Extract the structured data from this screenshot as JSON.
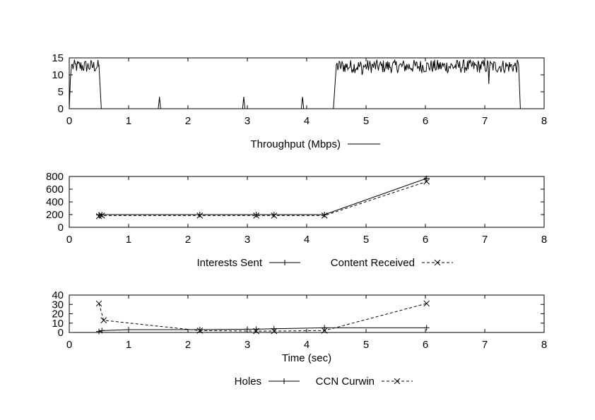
{
  "chart_data": [
    {
      "type": "line",
      "xlim": [
        0,
        8
      ],
      "ylim": [
        0,
        15
      ],
      "x_ticks": [
        "0",
        "1",
        "2",
        "3",
        "4",
        "5",
        "6",
        "7",
        "8"
      ],
      "y_ticks": [
        "0",
        "5",
        "10",
        "15"
      ],
      "xlabel": "",
      "ylabel": "",
      "legend_position": "bottom-center",
      "series": [
        {
          "name": "Throughput (Mbps)",
          "style": "solid",
          "points": [
            [
              0.0,
              0
            ],
            [
              0.02,
              9
            ],
            [
              0.04,
              13
            ],
            [
              0.5,
              13
            ],
            [
              0.54,
              0
            ],
            [
              1.5,
              0
            ],
            [
              1.52,
              3.5
            ],
            [
              1.54,
              0
            ],
            [
              2.92,
              0
            ],
            [
              2.94,
              3.5
            ],
            [
              2.96,
              0
            ],
            [
              3.91,
              0
            ],
            [
              3.93,
              3.5
            ],
            [
              3.95,
              0
            ],
            [
              4.45,
              0
            ],
            [
              4.5,
              13
            ],
            [
              7.57,
              13
            ],
            [
              7.6,
              0
            ],
            [
              8.0,
              0
            ]
          ],
          "noise_segments": [
            {
              "x": [
                0.04,
                0.5
              ],
              "y": [
                10.5,
                14.5
              ]
            },
            {
              "x": [
                4.5,
                7.57
              ],
              "y": [
                10.5,
                14.5
              ]
            }
          ],
          "dips": [
            [
              7.07,
              7.3
            ],
            [
              4.93,
              10.0
            ]
          ]
        }
      ]
    },
    {
      "type": "line",
      "xlim": [
        0,
        8
      ],
      "ylim": [
        0,
        800
      ],
      "x_ticks": [
        "0",
        "1",
        "2",
        "3",
        "4",
        "5",
        "6",
        "7",
        "8"
      ],
      "y_ticks": [
        "0",
        "200",
        "400",
        "600",
        "800"
      ],
      "xlabel": "",
      "ylabel": "",
      "legend_position": "bottom-center",
      "series": [
        {
          "name": "Interests Sent",
          "style": "solid",
          "marker": "plus",
          "points": [
            [
              0.5,
              195
            ],
            [
              0.55,
              200
            ],
            [
              2.2,
              200
            ],
            [
              3.15,
              200
            ],
            [
              3.45,
              200
            ],
            [
              4.3,
              200
            ],
            [
              6.02,
              770
            ]
          ]
        },
        {
          "name": "Content Received",
          "style": "dashed",
          "marker": "x",
          "points": [
            [
              0.5,
              175
            ],
            [
              0.55,
              185
            ],
            [
              2.2,
              185
            ],
            [
              3.15,
              185
            ],
            [
              3.45,
              185
            ],
            [
              4.3,
              185
            ],
            [
              6.02,
              720
            ]
          ]
        }
      ]
    },
    {
      "type": "line",
      "xlim": [
        0,
        8
      ],
      "ylim": [
        0,
        40
      ],
      "x_ticks": [
        "0",
        "1",
        "2",
        "3",
        "4",
        "5",
        "6",
        "7",
        "8"
      ],
      "y_ticks": [
        "0",
        "10",
        "20",
        "30",
        "40"
      ],
      "xlabel": "Time (sec)",
      "ylabel": "",
      "legend_position": "bottom-center",
      "series": [
        {
          "name": "Holes",
          "style": "solid",
          "marker": "plus",
          "points": [
            [
              0.5,
              1
            ],
            [
              0.55,
              2
            ],
            [
              1.0,
              3
            ],
            [
              2.2,
              3
            ],
            [
              3.0,
              3.5
            ],
            [
              3.15,
              3.5
            ],
            [
              3.45,
              4
            ],
            [
              4.3,
              5
            ],
            [
              6.02,
              5
            ]
          ]
        },
        {
          "name": "CCN Curwin",
          "style": "dashed",
          "marker": "x",
          "points": [
            [
              0.5,
              31
            ],
            [
              0.58,
              13
            ],
            [
              2.2,
              2
            ],
            [
              3.15,
              1.5
            ],
            [
              3.45,
              1.5
            ],
            [
              4.3,
              2
            ],
            [
              6.02,
              31
            ]
          ]
        }
      ]
    }
  ]
}
